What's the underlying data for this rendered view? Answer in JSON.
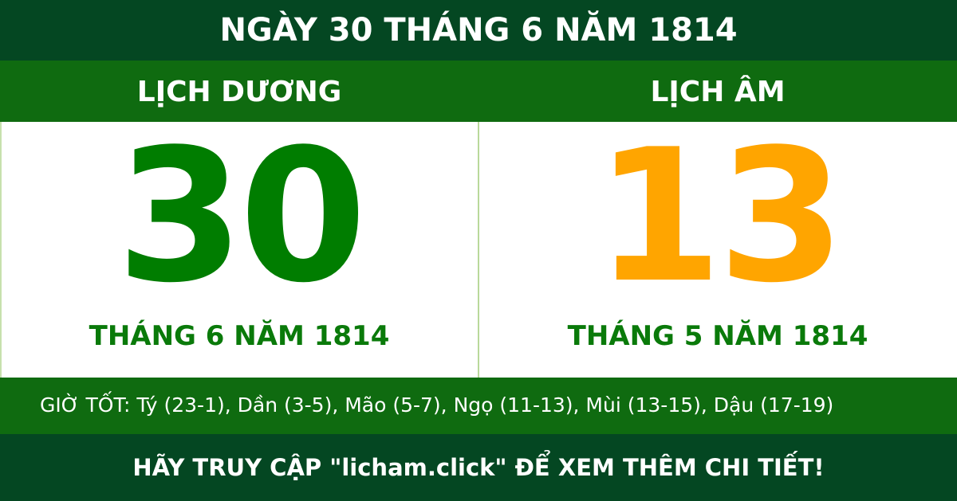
{
  "title": "NGÀY 30 THÁNG 6 NĂM 1814",
  "solar": {
    "label": "LỊCH DƯƠNG",
    "day": "30",
    "month_year": "THÁNG 6 NĂM 1814"
  },
  "lunar": {
    "label": "LỊCH ÂM",
    "day": "13",
    "month_year": "THÁNG 5 NĂM 1814"
  },
  "good_hours": "GIỜ TỐT: Tý (23-1), Dần (3-5), Mão (5-7), Ngọ (11-13), Mùi (13-15), Dậu (17-19)",
  "footer": "HÃY TRUY CẬP \"licham.click\" ĐỂ XEM THÊM CHI TIẾT!",
  "colors": {
    "dark_green": "#044722",
    "green": "#0f6b10",
    "solar_day": "#007d00",
    "lunar_day": "#ffa500"
  }
}
